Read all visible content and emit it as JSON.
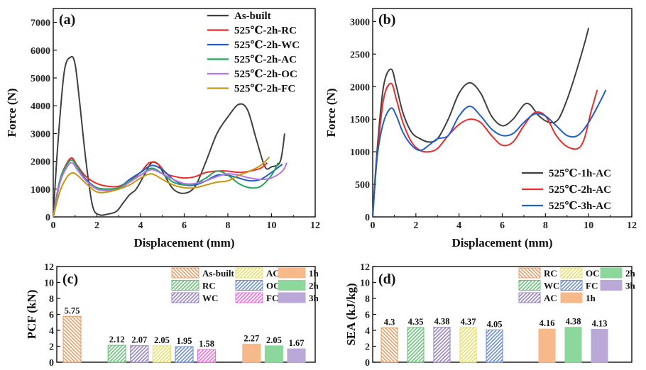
{
  "colors": {
    "as_built": "#404040",
    "rc": "#ee2b2b",
    "wc": "#1f5fc8",
    "ac": "#22a657",
    "oc": "#b474e6",
    "fc": "#c8960a",
    "t1h": "#404040",
    "t2h": "#ee2b2b",
    "t3h": "#1f5fc8",
    "bar_asbuilt": "#e8a06a",
    "bar_rc": "#6ac47a",
    "bar_wc": "#9a86c6",
    "bar_ac": "#e6e06c",
    "bar_oc": "#6e90d8",
    "bar_fc": "#f06ee0",
    "bar_1h": "#f7b98a",
    "bar_2h": "#8cd89c",
    "bar_3h": "#b9a8d8"
  },
  "chart_data": [
    {
      "panel": "(a)",
      "type": "line",
      "xlabel": "Displacement (mm)",
      "ylabel": "Force (N)",
      "xlim": [
        0,
        12
      ],
      "ylim": [
        0,
        7500
      ],
      "xticks": [
        "0",
        "2",
        "4",
        "6",
        "8",
        "10",
        "12"
      ],
      "yticks": [
        "0",
        "1000",
        "2000",
        "3000",
        "4000",
        "5000",
        "6000",
        "7000"
      ],
      "series": [
        {
          "name": "As-built",
          "color_key": "as_built",
          "x": [
            0,
            0.2,
            0.5,
            0.8,
            1.0,
            1.2,
            1.5,
            1.8,
            2.1,
            2.5,
            2.9,
            3.2,
            3.5,
            3.8,
            4.2,
            4.5,
            4.8,
            5.1,
            5.5,
            6.0,
            6.5,
            7.0,
            7.5,
            8.0,
            8.5,
            8.9,
            9.3,
            9.7,
            10.0,
            10.4,
            10.6
          ],
          "y": [
            0,
            2500,
            5200,
            5750,
            5500,
            4200,
            2000,
            400,
            80,
            100,
            200,
            500,
            800,
            1000,
            1550,
            1950,
            1900,
            1500,
            1000,
            850,
            1100,
            2000,
            3000,
            3600,
            4050,
            3850,
            2800,
            1800,
            1800,
            2000,
            3000
          ]
        },
        {
          "name": "525℃-2h-RC",
          "color_key": "rc",
          "x": [
            0,
            0.3,
            0.6,
            0.85,
            1.1,
            1.5,
            2.0,
            2.5,
            3.0,
            3.5,
            4.0,
            4.4,
            4.8,
            5.2,
            5.6,
            6.0,
            6.5,
            7.0,
            7.5,
            8.0,
            8.5,
            9.0,
            9.5,
            9.8
          ],
          "y": [
            0,
            1300,
            1900,
            2120,
            1850,
            1450,
            1200,
            1100,
            1100,
            1300,
            1600,
            1950,
            1900,
            1550,
            1450,
            1400,
            1450,
            1600,
            1650,
            1650,
            1600,
            1650,
            1750,
            1950
          ]
        },
        {
          "name": "525℃-2h-WC",
          "color_key": "wc",
          "x": [
            0,
            0.3,
            0.6,
            0.85,
            1.1,
            1.5,
            2.0,
            2.5,
            3.0,
            3.5,
            4.0,
            4.5,
            5.0,
            5.5,
            6.0,
            6.5,
            7.0,
            7.5,
            8.0,
            8.5,
            9.0,
            9.5,
            10.0,
            10.5
          ],
          "y": [
            0,
            1300,
            1850,
            2050,
            1800,
            1350,
            1050,
            1000,
            1050,
            1350,
            1600,
            1850,
            1700,
            1350,
            1150,
            1150,
            1300,
            1500,
            1500,
            1400,
            1300,
            1350,
            1600,
            1900
          ]
        },
        {
          "name": "525℃-2h-AC",
          "color_key": "ac",
          "x": [
            0,
            0.3,
            0.6,
            0.85,
            1.1,
            1.5,
            2.0,
            2.5,
            3.0,
            3.5,
            4.0,
            4.5,
            5.0,
            5.5,
            6.0,
            6.5,
            7.0,
            7.5,
            8.0,
            8.5,
            9.0,
            9.5,
            10.0,
            10.3
          ],
          "y": [
            0,
            1300,
            1850,
            2050,
            1800,
            1300,
            1050,
            1000,
            1050,
            1300,
            1500,
            1750,
            1550,
            1250,
            1150,
            1200,
            1400,
            1650,
            1500,
            1200,
            1050,
            1100,
            1500,
            1950
          ]
        },
        {
          "name": "525℃-2h-OC",
          "color_key": "oc",
          "x": [
            0,
            0.3,
            0.6,
            0.85,
            1.1,
            1.5,
            2.0,
            2.5,
            3.0,
            3.5,
            4.0,
            4.5,
            5.0,
            5.5,
            6.0,
            6.5,
            7.0,
            7.5,
            8.0,
            8.5,
            9.0,
            9.5,
            10.0,
            10.5,
            10.7
          ],
          "y": [
            0,
            1200,
            1750,
            1950,
            1700,
            1300,
            1000,
            950,
            1000,
            1250,
            1500,
            1700,
            1550,
            1350,
            1200,
            1200,
            1300,
            1450,
            1550,
            1500,
            1400,
            1350,
            1400,
            1650,
            1950
          ]
        },
        {
          "name": "525℃-2h-FC",
          "color_key": "fc",
          "x": [
            0,
            0.3,
            0.6,
            0.85,
            1.1,
            1.5,
            2.0,
            2.5,
            3.0,
            3.5,
            4.0,
            4.5,
            5.0,
            5.5,
            6.0,
            6.5,
            7.0,
            7.5,
            8.0,
            8.5,
            9.0,
            9.5,
            9.9
          ],
          "y": [
            0,
            900,
            1400,
            1580,
            1500,
            1200,
            900,
            900,
            1000,
            1150,
            1400,
            1550,
            1350,
            1150,
            1050,
            1050,
            1150,
            1250,
            1300,
            1500,
            1650,
            1850,
            2150
          ]
        }
      ]
    },
    {
      "panel": "(b)",
      "type": "line",
      "xlabel": "Displacement (mm)",
      "ylabel": "Force (N)",
      "xlim": [
        0,
        12
      ],
      "ylim": [
        0,
        3200
      ],
      "xticks": [
        "0",
        "2",
        "4",
        "6",
        "8",
        "10",
        "12"
      ],
      "yticks": [
        "0",
        "500",
        "1000",
        "1500",
        "2000",
        "2500",
        "3000"
      ],
      "series": [
        {
          "name": "525℃-1h-AC",
          "color_key": "t1h",
          "x": [
            0,
            0.2,
            0.5,
            0.85,
            1.1,
            1.4,
            1.8,
            2.2,
            2.6,
            3.0,
            3.5,
            4.0,
            4.5,
            5.0,
            5.5,
            6.0,
            6.5,
            7.0,
            7.3,
            7.7,
            8.2,
            8.6,
            9.0,
            9.4,
            9.8,
            10.0
          ],
          "y": [
            0,
            1000,
            2000,
            2270,
            2000,
            1600,
            1300,
            1200,
            1150,
            1200,
            1500,
            1900,
            2060,
            1900,
            1550,
            1400,
            1500,
            1720,
            1720,
            1550,
            1450,
            1500,
            1800,
            2200,
            2650,
            2900
          ]
        },
        {
          "name": "525℃-2h-AC",
          "color_key": "t2h",
          "x": [
            0,
            0.2,
            0.5,
            0.85,
            1.1,
            1.4,
            1.8,
            2.2,
            2.6,
            3.0,
            3.5,
            4.0,
            4.5,
            5.0,
            5.5,
            6.0,
            6.5,
            7.0,
            7.5,
            8.0,
            8.5,
            9.0,
            9.5,
            9.8,
            10.1,
            10.4
          ],
          "y": [
            0,
            900,
            1800,
            2050,
            1800,
            1450,
            1150,
            1020,
            1000,
            1050,
            1250,
            1420,
            1500,
            1450,
            1250,
            1100,
            1150,
            1400,
            1600,
            1550,
            1250,
            1080,
            1050,
            1200,
            1600,
            1950
          ]
        },
        {
          "name": "525℃-3h-AC",
          "color_key": "t3h",
          "x": [
            0,
            0.2,
            0.5,
            0.85,
            1.1,
            1.4,
            1.8,
            2.2,
            2.6,
            3.0,
            3.5,
            4.0,
            4.5,
            5.0,
            5.5,
            6.0,
            6.5,
            7.0,
            7.5,
            8.0,
            8.5,
            9.0,
            9.5,
            10.0,
            10.5,
            10.8
          ],
          "y": [
            0,
            900,
            1450,
            1670,
            1550,
            1300,
            1100,
            1020,
            1100,
            1200,
            1250,
            1550,
            1700,
            1550,
            1350,
            1250,
            1280,
            1450,
            1580,
            1550,
            1400,
            1250,
            1250,
            1450,
            1750,
            1950
          ]
        }
      ]
    },
    {
      "panel": "(c)",
      "type": "bar",
      "ylabel": "PCF (kN)",
      "ylim": [
        0,
        12
      ],
      "yticks": [
        "0",
        "2",
        "4",
        "6",
        "8",
        "10",
        "12"
      ],
      "bars": [
        {
          "label": "As-built",
          "value": 5.75,
          "value_label": "5.75",
          "color_key": "bar_asbuilt",
          "pattern": "back",
          "slot": 0
        },
        {
          "label": "RC",
          "value": 2.12,
          "value_label": "2.12",
          "color_key": "bar_rc",
          "pattern": "fwd",
          "slot": 2
        },
        {
          "label": "WC",
          "value": 2.07,
          "value_label": "2.07",
          "color_key": "bar_wc",
          "pattern": "fwd",
          "slot": 3
        },
        {
          "label": "AC",
          "value": 2.05,
          "value_label": "2.05",
          "color_key": "bar_ac",
          "pattern": "fwd",
          "slot": 4
        },
        {
          "label": "OC",
          "value": 1.95,
          "value_label": "1.95",
          "color_key": "bar_oc",
          "pattern": "fwd",
          "slot": 5
        },
        {
          "label": "FC",
          "value": 1.58,
          "value_label": "1.58",
          "color_key": "bar_fc",
          "pattern": "fwd",
          "slot": 6
        },
        {
          "label": "1h",
          "value": 2.27,
          "value_label": "2.27",
          "color_key": "bar_1h",
          "pattern": "none",
          "slot": 8
        },
        {
          "label": "2h",
          "value": 2.05,
          "value_label": "2.05",
          "color_key": "bar_2h",
          "pattern": "none",
          "slot": 9
        },
        {
          "label": "3h",
          "value": 1.67,
          "value_label": "1.67",
          "color_key": "bar_3h",
          "pattern": "none",
          "slot": 10
        }
      ],
      "legend": [
        {
          "label": "As-built",
          "color_key": "bar_asbuilt",
          "pattern": "back"
        },
        {
          "label": "RC",
          "color_key": "bar_rc",
          "pattern": "fwd"
        },
        {
          "label": "WC",
          "color_key": "bar_wc",
          "pattern": "fwd"
        },
        {
          "label": "AC",
          "color_key": "bar_ac",
          "pattern": "fwd"
        },
        {
          "label": "OC",
          "color_key": "bar_oc",
          "pattern": "fwd"
        },
        {
          "label": "FC",
          "color_key": "bar_fc",
          "pattern": "fwd"
        },
        {
          "label": "1h",
          "color_key": "bar_1h",
          "pattern": "none"
        },
        {
          "label": "2h",
          "color_key": "bar_2h",
          "pattern": "none"
        },
        {
          "label": "3h",
          "color_key": "bar_3h",
          "pattern": "none"
        }
      ]
    },
    {
      "panel": "(d)",
      "type": "bar",
      "ylabel": "SEA (kJ/kg)",
      "ylim": [
        0,
        12
      ],
      "yticks": [
        "0",
        "2",
        "4",
        "6",
        "8",
        "10",
        "12"
      ],
      "bars": [
        {
          "label": "RC",
          "value": 4.3,
          "value_label": "4.3",
          "color_key": "bar_asbuilt",
          "pattern": "back",
          "slot": 0
        },
        {
          "label": "WC",
          "value": 4.35,
          "value_label": "4.35",
          "color_key": "bar_rc",
          "pattern": "fwd",
          "slot": 1
        },
        {
          "label": "AC",
          "value": 4.38,
          "value_label": "4.38",
          "color_key": "bar_wc",
          "pattern": "fwd",
          "slot": 2
        },
        {
          "label": "OC",
          "value": 4.37,
          "value_label": "4.37",
          "color_key": "bar_ac",
          "pattern": "fwd",
          "slot": 3
        },
        {
          "label": "FC",
          "value": 4.05,
          "value_label": "4.05",
          "color_key": "bar_oc",
          "pattern": "fwd",
          "slot": 4
        },
        {
          "label": "1h",
          "value": 4.16,
          "value_label": "4.16",
          "color_key": "bar_1h",
          "pattern": "none",
          "slot": 6
        },
        {
          "label": "2h",
          "value": 4.38,
          "value_label": "4.38",
          "color_key": "bar_2h",
          "pattern": "none",
          "slot": 7
        },
        {
          "label": "3h",
          "value": 4.13,
          "value_label": "4.13",
          "color_key": "bar_3h",
          "pattern": "none",
          "slot": 8
        }
      ],
      "legend": [
        {
          "label": "RC",
          "color_key": "bar_asbuilt",
          "pattern": "back"
        },
        {
          "label": "WC",
          "color_key": "bar_rc",
          "pattern": "fwd"
        },
        {
          "label": "AC",
          "color_key": "bar_wc",
          "pattern": "fwd"
        },
        {
          "label": "OC",
          "color_key": "bar_ac",
          "pattern": "fwd"
        },
        {
          "label": "FC",
          "color_key": "bar_oc",
          "pattern": "fwd"
        },
        {
          "label": "1h",
          "color_key": "bar_1h",
          "pattern": "none"
        },
        {
          "label": "2h",
          "color_key": "bar_2h",
          "pattern": "none"
        },
        {
          "label": "3h",
          "color_key": "bar_3h",
          "pattern": "none"
        }
      ]
    }
  ]
}
